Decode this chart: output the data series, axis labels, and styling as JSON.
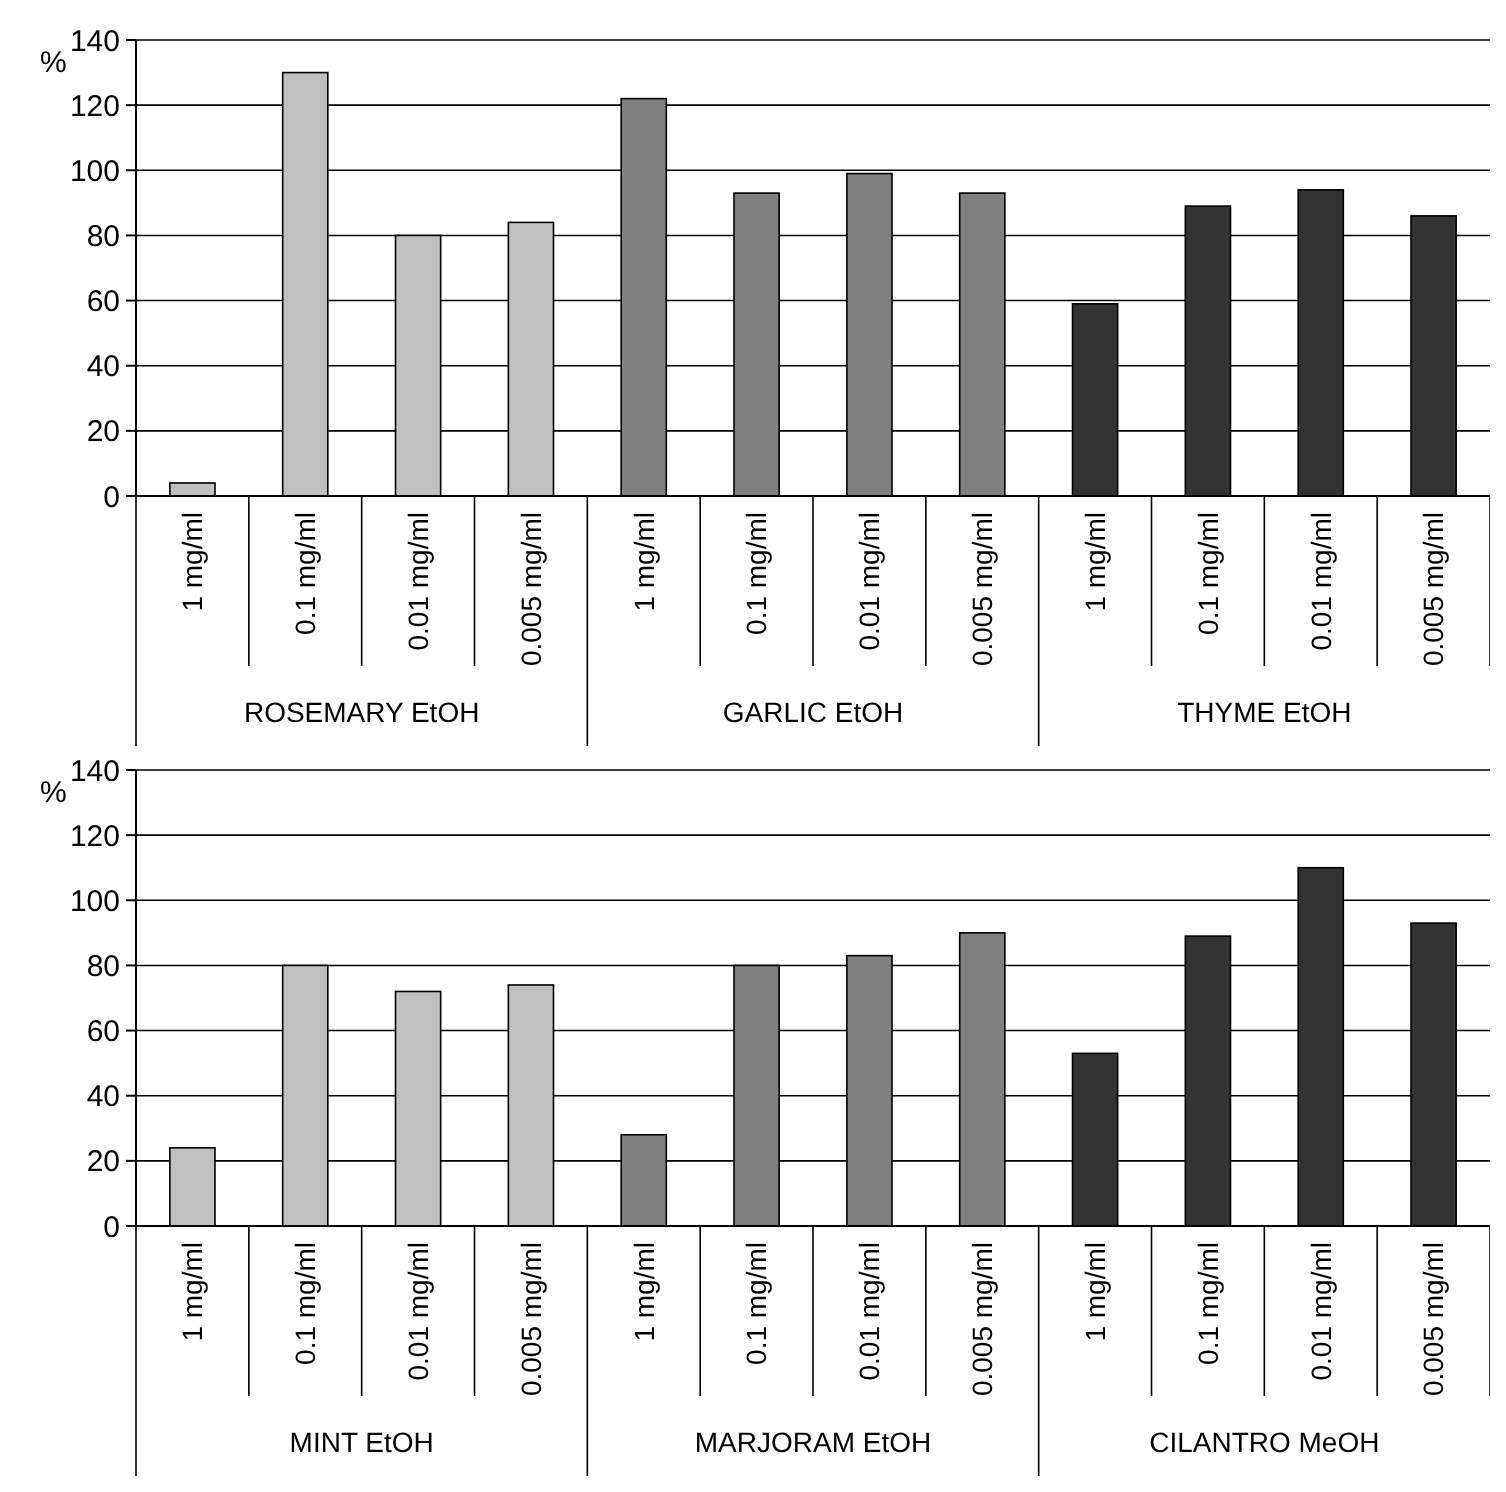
{
  "chart_data": [
    {
      "type": "bar",
      "ylabel": "%",
      "categories": [
        "1 mg/ml",
        "0.1 mg/ml",
        "0.01 mg/ml",
        "0.005 mg/ml",
        "1 mg/ml",
        "0.1 mg/ml",
        "0.01 mg/ml",
        "0.005 mg/ml",
        "1 mg/ml",
        "0.1 mg/ml",
        "0.01 mg/ml",
        "0.005 mg/ml"
      ],
      "values": [
        4,
        130,
        80,
        84,
        122,
        93,
        99,
        93,
        59,
        89,
        94,
        86
      ],
      "colors": [
        "#c0c0c0",
        "#c0c0c0",
        "#c0c0c0",
        "#c0c0c0",
        "#808080",
        "#808080",
        "#808080",
        "#808080",
        "#333333",
        "#333333",
        "#333333",
        "#333333"
      ],
      "annotations": [
        "ROSEMARY EtOH",
        "GARLIC EtOH",
        "THYME EtOH"
      ],
      "ylim": [
        0,
        140
      ],
      "yticks": [
        0,
        20,
        40,
        60,
        80,
        100,
        120,
        140
      ],
      "grid": "y"
    },
    {
      "type": "bar",
      "ylabel": "%",
      "categories": [
        "1 mg/ml",
        "0.1 mg/ml",
        "0.01 mg/ml",
        "0.005 mg/ml",
        "1 mg/ml",
        "0.1 mg/ml",
        "0.01 mg/ml",
        "0.005 mg/ml",
        "1 mg/ml",
        "0.1 mg/ml",
        "0.01 mg/ml",
        "0.005 mg/ml"
      ],
      "values": [
        24,
        80,
        72,
        74,
        28,
        80,
        83,
        90,
        53,
        89,
        110,
        93
      ],
      "colors": [
        "#c0c0c0",
        "#c0c0c0",
        "#c0c0c0",
        "#c0c0c0",
        "#808080",
        "#808080",
        "#808080",
        "#808080",
        "#333333",
        "#333333",
        "#333333",
        "#333333"
      ],
      "annotations": [
        "MINT EtOH",
        "MARJORAM EtOH",
        "CILANTRO MeOH"
      ],
      "ylim": [
        0,
        140
      ],
      "yticks": [
        0,
        20,
        40,
        60,
        80,
        100,
        120,
        140
      ],
      "grid": "y"
    }
  ]
}
